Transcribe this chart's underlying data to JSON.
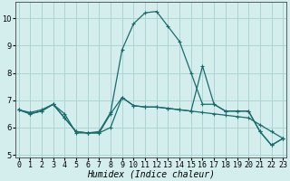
{
  "title": "",
  "xlabel": "Humidex (Indice chaleur)",
  "ylabel": "",
  "background_color": "#d4eeee",
  "grid_color": "#aed4d4",
  "line_color": "#1a6b6b",
  "x_ticks": [
    0,
    1,
    2,
    3,
    4,
    5,
    6,
    7,
    8,
    9,
    10,
    11,
    12,
    13,
    14,
    15,
    16,
    17,
    18,
    19,
    20,
    21,
    22,
    23
  ],
  "ylim": [
    4.9,
    10.6
  ],
  "xlim": [
    -0.3,
    23.3
  ],
  "yticks": [
    5,
    6,
    7,
    8,
    9,
    10
  ],
  "curve1_x": [
    0,
    1,
    2,
    3,
    4,
    5,
    6,
    7,
    8,
    9,
    10,
    11,
    12,
    13,
    14,
    15,
    16,
    17,
    18,
    19,
    20,
    21,
    22,
    23
  ],
  "curve1_y": [
    6.65,
    6.55,
    6.65,
    6.85,
    6.5,
    5.8,
    5.8,
    5.85,
    6.55,
    8.85,
    9.8,
    10.2,
    10.25,
    9.7,
    9.15,
    8.0,
    6.85,
    6.85,
    6.6,
    6.6,
    6.6,
    5.85,
    5.35,
    5.6
  ],
  "curve2_x": [
    0,
    1,
    2,
    3,
    4,
    5,
    6,
    7,
    8,
    9,
    10,
    11,
    12,
    13,
    14,
    15,
    16,
    17,
    18,
    19,
    20,
    21,
    22,
    23
  ],
  "curve2_y": [
    6.65,
    6.5,
    6.6,
    6.85,
    6.35,
    5.85,
    5.8,
    5.8,
    6.0,
    7.1,
    6.8,
    6.75,
    6.75,
    6.7,
    6.65,
    6.6,
    6.55,
    6.5,
    6.45,
    6.4,
    6.35,
    6.1,
    5.85,
    5.6
  ],
  "curve3_x": [
    0,
    1,
    2,
    3,
    4,
    5,
    6,
    7,
    8,
    9,
    10,
    11,
    12,
    13,
    14,
    15,
    16,
    17,
    18,
    19,
    20,
    21,
    22,
    23
  ],
  "curve3_y": [
    6.65,
    6.5,
    6.6,
    6.85,
    6.35,
    5.85,
    5.8,
    5.8,
    6.5,
    7.1,
    6.8,
    6.75,
    6.75,
    6.7,
    6.65,
    6.6,
    8.25,
    6.85,
    6.6,
    6.6,
    6.6,
    5.85,
    5.35,
    5.6
  ],
  "tick_fontsize": 6.0,
  "xlabel_fontsize": 7.0
}
